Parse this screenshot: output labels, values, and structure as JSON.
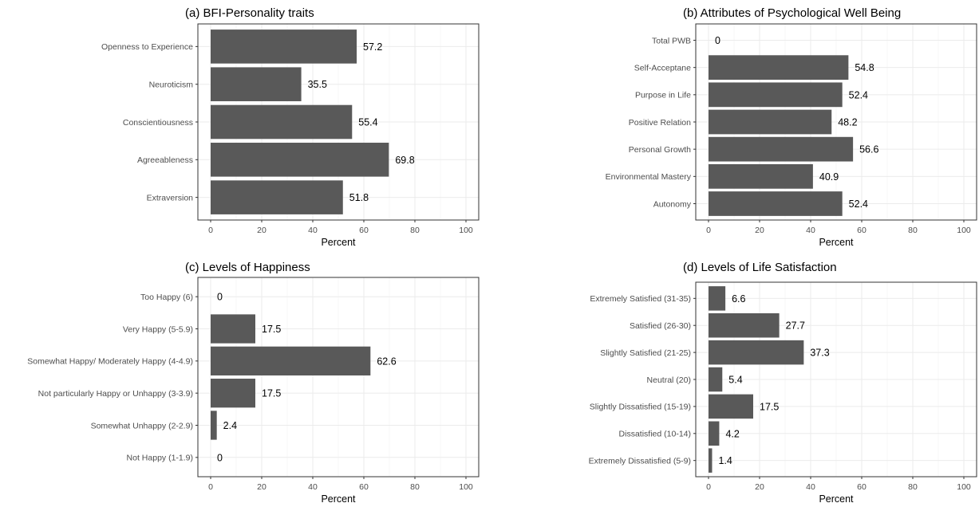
{
  "chart_data": [
    {
      "type": "bar",
      "orientation": "horizontal",
      "title": "(a) BFI-Personality traits",
      "xlabel": "Percent",
      "ylabel": "",
      "xlim": [
        0,
        100
      ],
      "xticks": [
        0,
        20,
        40,
        60,
        80,
        100
      ],
      "categories": [
        "Openness to Experience",
        "Neuroticism",
        "Conscientiousness",
        "Agreeableness",
        "Extraversion"
      ],
      "values": [
        57.2,
        35.5,
        55.4,
        69.8,
        51.8
      ],
      "value_labels": [
        "57.2",
        "35.5",
        "55.4",
        "69.8",
        "51.8"
      ],
      "bar_color": "#595959",
      "grid": true
    },
    {
      "type": "bar",
      "orientation": "horizontal",
      "title": "(b) Attributes of Psychological Well Being",
      "xlabel": "Percent",
      "ylabel": "",
      "xlim": [
        0,
        100
      ],
      "xticks": [
        0,
        20,
        40,
        60,
        80,
        100
      ],
      "categories": [
        "Total PWB",
        "Self-Acceptane",
        "Purpose in Life",
        "Positive Relation",
        "Personal Growth",
        "Environmental Mastery",
        "Autonomy"
      ],
      "values": [
        0,
        54.8,
        52.4,
        48.2,
        56.6,
        40.9,
        52.4
      ],
      "value_labels": [
        "0",
        "54.8",
        "52.4",
        "48.2",
        "56.6",
        "40.9",
        "52.4"
      ],
      "bar_color": "#595959",
      "grid": true
    },
    {
      "type": "bar",
      "orientation": "horizontal",
      "title": "(c) Levels of Happiness",
      "xlabel": "Percent",
      "ylabel": "",
      "xlim": [
        0,
        100
      ],
      "xticks": [
        0,
        20,
        40,
        60,
        80,
        100
      ],
      "categories": [
        "Too Happy (6)",
        "Very Happy (5-5.9)",
        "Somewhat Happy/ Moderately Happy (4-4.9)",
        "Not particularly Happy or Unhappy (3-3.9)",
        "Somewhat Unhappy (2-2.9)",
        "Not Happy (1-1.9)"
      ],
      "values": [
        0,
        17.5,
        62.6,
        17.5,
        2.4,
        0
      ],
      "value_labels": [
        "0",
        "17.5",
        "62.6",
        "17.5",
        "2.4",
        "0"
      ],
      "bar_color": "#595959",
      "grid": true
    },
    {
      "type": "bar",
      "orientation": "horizontal",
      "title": "(d) Levels of Life Satisfaction",
      "xlabel": "Percent",
      "ylabel": "",
      "xlim": [
        0,
        100
      ],
      "xticks": [
        0,
        20,
        40,
        60,
        80,
        100
      ],
      "categories": [
        "Extremely Satisfied (31-35)",
        "Satisfied (26-30)",
        "Slightly Satisfied (21-25)",
        "Neutral (20)",
        "Slightly Dissatisfied (15-19)",
        "Dissatisfied (10-14)",
        "Extremely Dissatisfied (5-9)"
      ],
      "values": [
        6.6,
        27.7,
        37.3,
        5.4,
        17.5,
        4.2,
        1.4
      ],
      "value_labels": [
        "6.6",
        "27.7",
        "37.3",
        "5.4",
        "17.5",
        "4.2",
        "1.4"
      ],
      "bar_color": "#595959",
      "grid": true
    }
  ]
}
